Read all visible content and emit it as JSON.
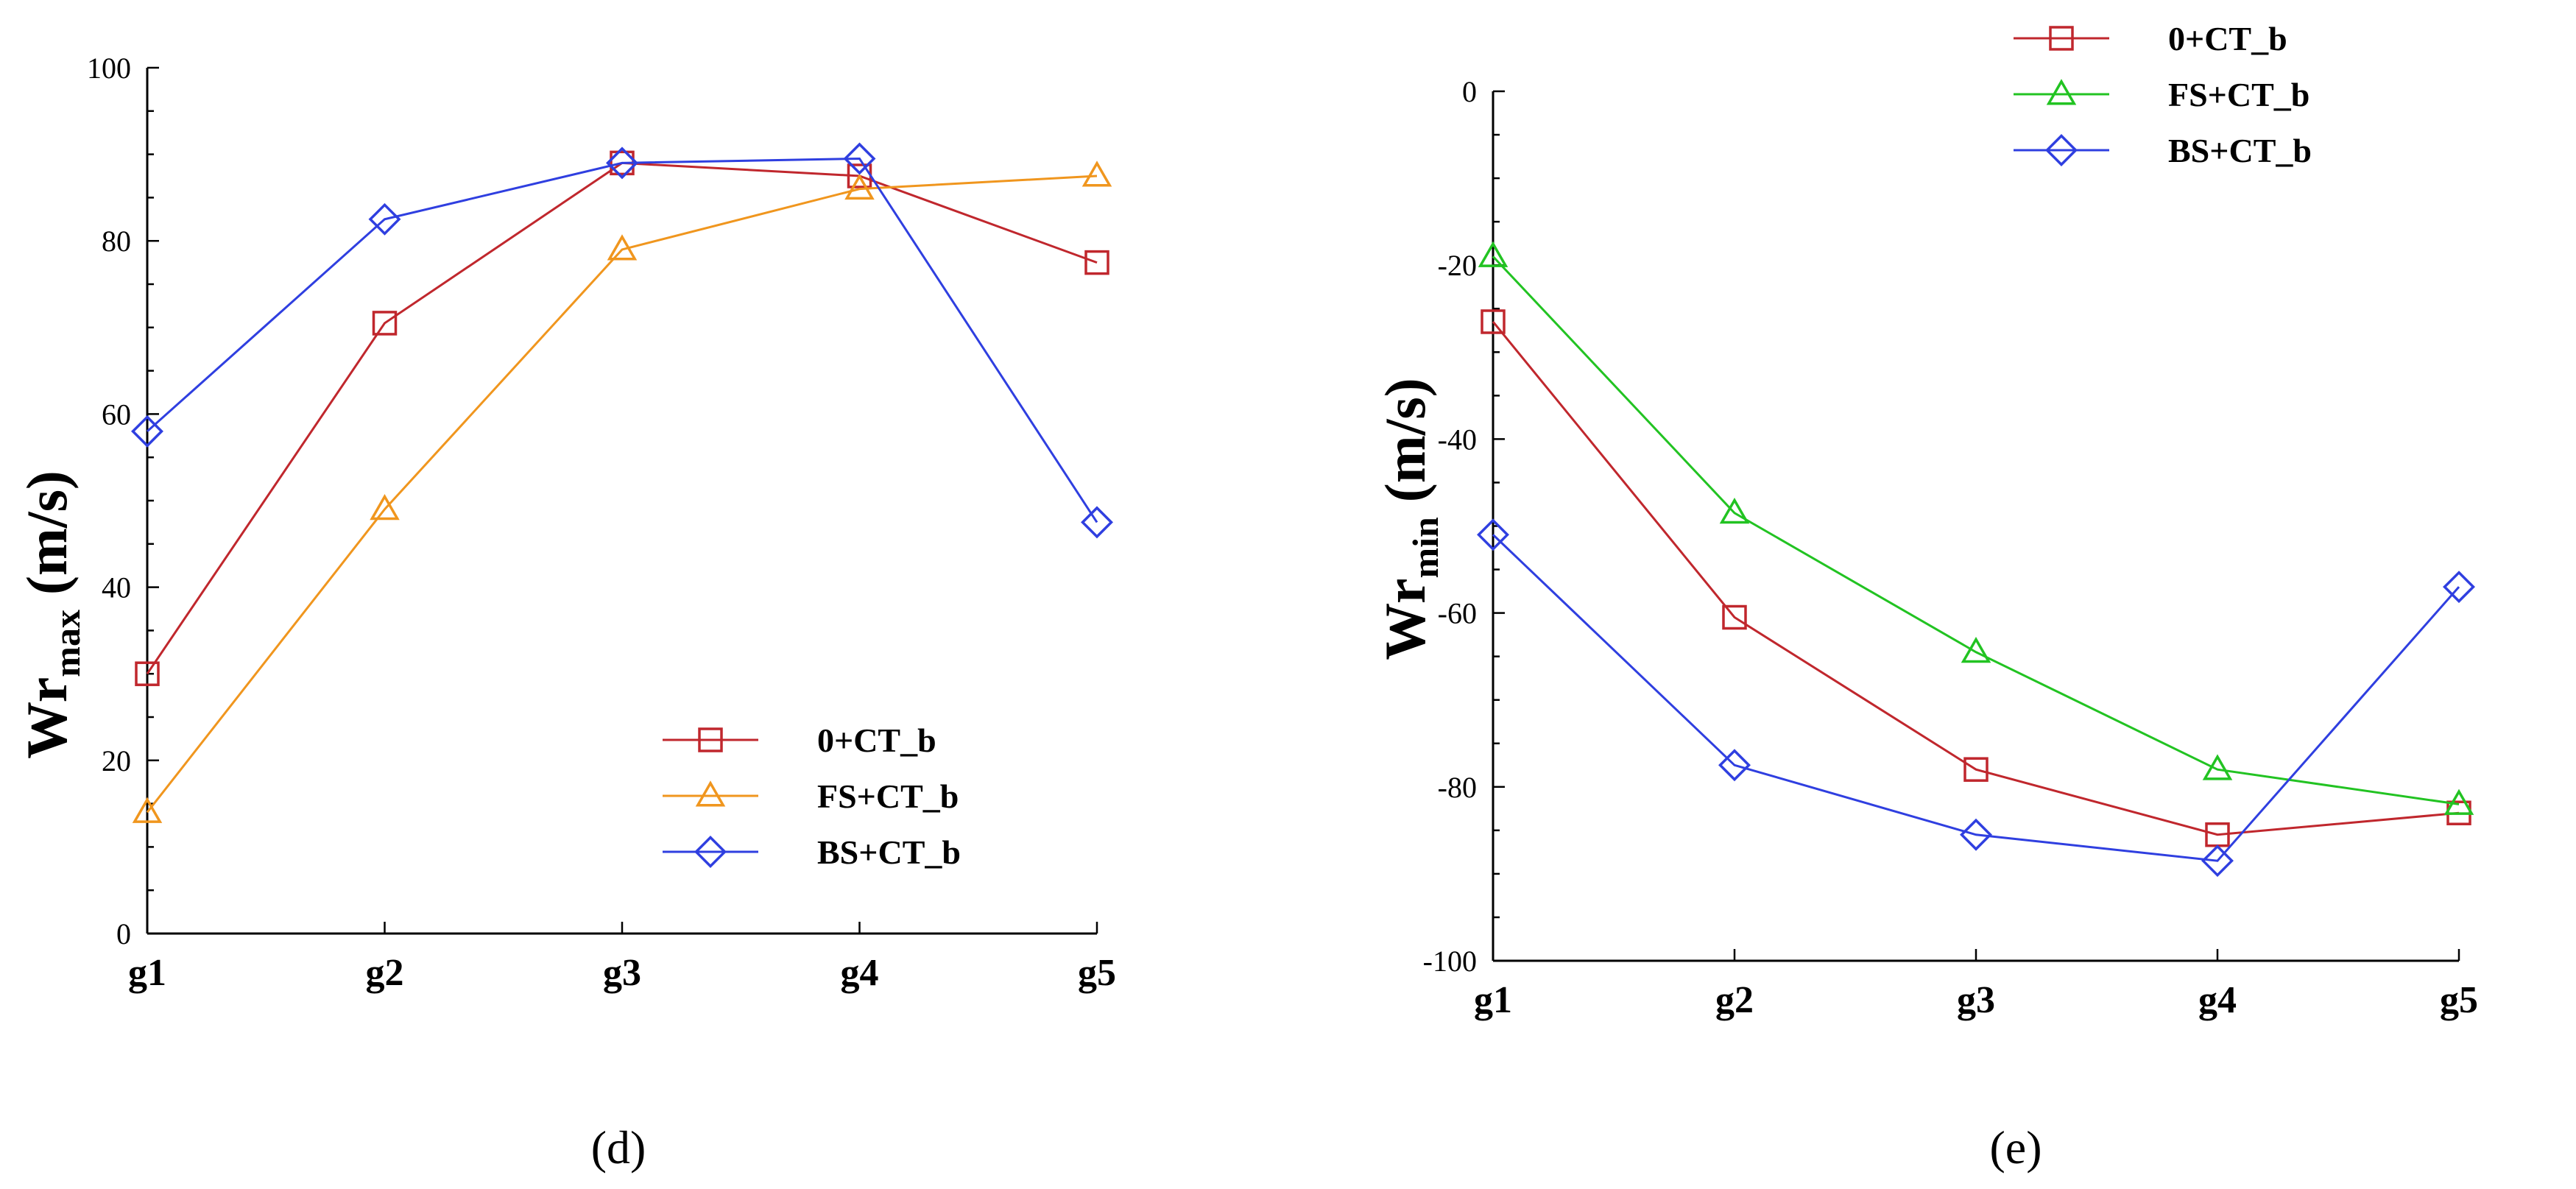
{
  "chart_data": [
    {
      "type": "line",
      "panel_label": "(d)",
      "categories": [
        "g1",
        "g2",
        "g3",
        "g4",
        "g5"
      ],
      "ylabel": "Wr",
      "ylabel_sub": "max",
      "ylabel_unit": "(m/s)",
      "ylim": [
        0,
        100
      ],
      "yticks": [
        0,
        20,
        40,
        60,
        80,
        100
      ],
      "grid": false,
      "legend_position": "bottom-right",
      "series": [
        {
          "name": "0+CT_b",
          "marker": "square",
          "color": "#c0272d",
          "values": [
            30,
            70.5,
            89,
            87.5,
            77.5
          ]
        },
        {
          "name": "FS+CT_b",
          "marker": "triangle",
          "color": "#f0961e",
          "values": [
            14,
            49,
            79,
            86,
            87.5
          ]
        },
        {
          "name": "BS+CT_b",
          "marker": "diamond",
          "color": "#2f3fe0",
          "values": [
            58,
            82.5,
            89,
            89.5,
            47.5
          ]
        }
      ]
    },
    {
      "type": "line",
      "panel_label": "(e)",
      "categories": [
        "g1",
        "g2",
        "g3",
        "g4",
        "g5"
      ],
      "ylabel": "Wr",
      "ylabel_sub": "min",
      "ylabel_unit": "(m/s)",
      "ylim": [
        -100,
        0
      ],
      "yticks": [
        -100,
        -80,
        -60,
        -40,
        -20,
        0
      ],
      "grid": false,
      "legend_position": "top-right",
      "series": [
        {
          "name": "0+CT_b",
          "marker": "square",
          "color": "#c0272d",
          "values": [
            -26.5,
            -60.5,
            -78,
            -85.5,
            -83
          ]
        },
        {
          "name": "FS+CT_b",
          "marker": "triangle",
          "color": "#22c322",
          "values": [
            -19,
            -48.5,
            -64.5,
            -78,
            -82
          ]
        },
        {
          "name": "BS+CT_b",
          "marker": "diamond",
          "color": "#2f3fe0",
          "values": [
            -51,
            -77.5,
            -85.5,
            -88.5,
            -57
          ]
        }
      ]
    }
  ]
}
